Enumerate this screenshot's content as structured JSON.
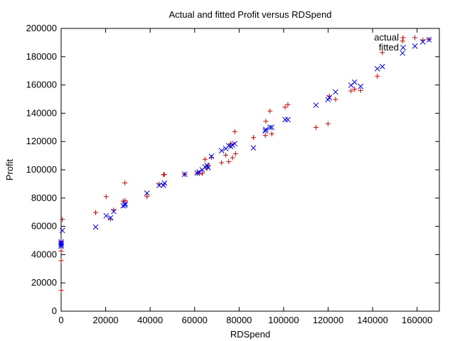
{
  "chart_data": {
    "type": "scatter",
    "title": "Actual and fitted Profit versus RDSpend",
    "xlabel": "RDSpend",
    "ylabel": "Profit",
    "xlim": [
      0,
      170000
    ],
    "ylim": [
      0,
      200000
    ],
    "xticks": [
      0,
      20000,
      40000,
      60000,
      80000,
      100000,
      120000,
      140000,
      160000
    ],
    "yticks": [
      0,
      20000,
      40000,
      60000,
      80000,
      100000,
      120000,
      140000,
      160000,
      180000,
      200000
    ],
    "tick_labels_x": [
      "0",
      "20000",
      "40000",
      "60000",
      "80000",
      "100000",
      "120000",
      "140000",
      "160000"
    ],
    "tick_labels_y": [
      "0",
      "20000",
      "40000",
      "60000",
      "80000",
      "100000",
      "120000",
      "140000",
      "160000",
      "180000",
      "200000"
    ],
    "grid": false,
    "legend": "top-right",
    "series": [
      {
        "name": "actual",
        "marker": "+",
        "color": "#cc0000",
        "points": [
          [
            0,
            14681
          ],
          [
            0,
            35673
          ],
          [
            0,
            42560
          ],
          [
            0,
            47000
          ],
          [
            0,
            49000
          ],
          [
            542,
            64927
          ],
          [
            15506,
            69759
          ],
          [
            20229,
            81006
          ],
          [
            22178,
            65200
          ],
          [
            23641,
            71498
          ],
          [
            27893,
            77798
          ],
          [
            28664,
            90708
          ],
          [
            28754,
            78240
          ],
          [
            38559,
            81005
          ],
          [
            44070,
            89949
          ],
          [
            46014,
            96479
          ],
          [
            46427,
            96712
          ],
          [
            55494,
            96779
          ],
          [
            61136,
            97484
          ],
          [
            61995,
            97427
          ],
          [
            63408,
            97483
          ],
          [
            64665,
            107404
          ],
          [
            65605,
            101004
          ],
          [
            66052,
            103282
          ],
          [
            67533,
            108734
          ],
          [
            72107,
            105008
          ],
          [
            73994,
            110353
          ],
          [
            75329,
            105733
          ],
          [
            76253,
            118474
          ],
          [
            77045,
            108552
          ],
          [
            78013,
            126992
          ],
          [
            78389,
            111313
          ],
          [
            86419,
            122777
          ],
          [
            91749,
            124266
          ],
          [
            91992,
            134307
          ],
          [
            93864,
            141585
          ],
          [
            94657,
            125370
          ],
          [
            100672,
            144259
          ],
          [
            101913,
            146122
          ],
          [
            114523,
            129917
          ],
          [
            119944,
            132602
          ],
          [
            120543,
            152212
          ],
          [
            123335,
            149760
          ],
          [
            130298,
            155752
          ],
          [
            131877,
            156991
          ],
          [
            134615,
            156123
          ],
          [
            142107,
            166188
          ],
          [
            144372,
            182902
          ],
          [
            153441,
            191050
          ],
          [
            162597,
            191792
          ],
          [
            165349,
            192261
          ],
          [
            159000,
            193500
          ]
        ]
      },
      {
        "name": "fitted",
        "marker": "x",
        "color": "#0000ee",
        "points": [
          [
            0,
            46000
          ],
          [
            0,
            47000
          ],
          [
            0,
            48000
          ],
          [
            0,
            49000
          ],
          [
            542,
            57000
          ],
          [
            15506,
            59500
          ],
          [
            20229,
            67500
          ],
          [
            22178,
            66000
          ],
          [
            23641,
            70500
          ],
          [
            27893,
            74500
          ],
          [
            28664,
            75000
          ],
          [
            28754,
            76000
          ],
          [
            38559,
            83500
          ],
          [
            44070,
            89000
          ],
          [
            46014,
            89000
          ],
          [
            46427,
            90500
          ],
          [
            55494,
            96800
          ],
          [
            61136,
            97700
          ],
          [
            61995,
            98400
          ],
          [
            63408,
            100000
          ],
          [
            64665,
            102000
          ],
          [
            65605,
            103000
          ],
          [
            66052,
            101500
          ],
          [
            67533,
            109500
          ],
          [
            72107,
            113500
          ],
          [
            73994,
            115000
          ],
          [
            75329,
            117000
          ],
          [
            76253,
            116500
          ],
          [
            77045,
            117500
          ],
          [
            78013,
            118500
          ],
          [
            86419,
            115500
          ],
          [
            91749,
            127500
          ],
          [
            91992,
            128500
          ],
          [
            93864,
            130000
          ],
          [
            94657,
            130000
          ],
          [
            100672,
            135500
          ],
          [
            101913,
            135500
          ],
          [
            114523,
            145700
          ],
          [
            119944,
            149600
          ],
          [
            120543,
            151000
          ],
          [
            123335,
            155000
          ],
          [
            130298,
            159800
          ],
          [
            131877,
            162000
          ],
          [
            134615,
            159000
          ],
          [
            142107,
            171500
          ],
          [
            144372,
            173000
          ],
          [
            153441,
            182500
          ],
          [
            159000,
            187500
          ],
          [
            162597,
            190500
          ],
          [
            165349,
            192000
          ]
        ]
      }
    ]
  }
}
